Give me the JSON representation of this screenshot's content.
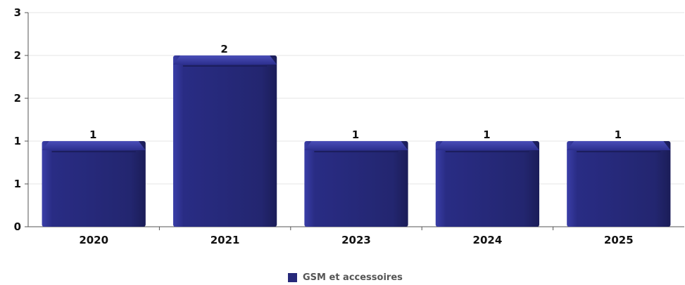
{
  "chart_data": {
    "type": "bar",
    "categories": [
      "2020",
      "2021",
      "2023",
      "2024",
      "2025"
    ],
    "series": [
      {
        "name": "GSM et accessoires",
        "values": [
          1,
          2,
          1,
          1,
          1
        ],
        "color": "#27297a"
      }
    ],
    "data_labels": [
      "1",
      "2",
      "1",
      "1",
      "1"
    ],
    "y_tick_labels": [
      "0",
      "1",
      "1",
      "2",
      "2",
      "3"
    ],
    "ylim": [
      0,
      2.5
    ],
    "grid": true,
    "legend_position": "bottom"
  }
}
